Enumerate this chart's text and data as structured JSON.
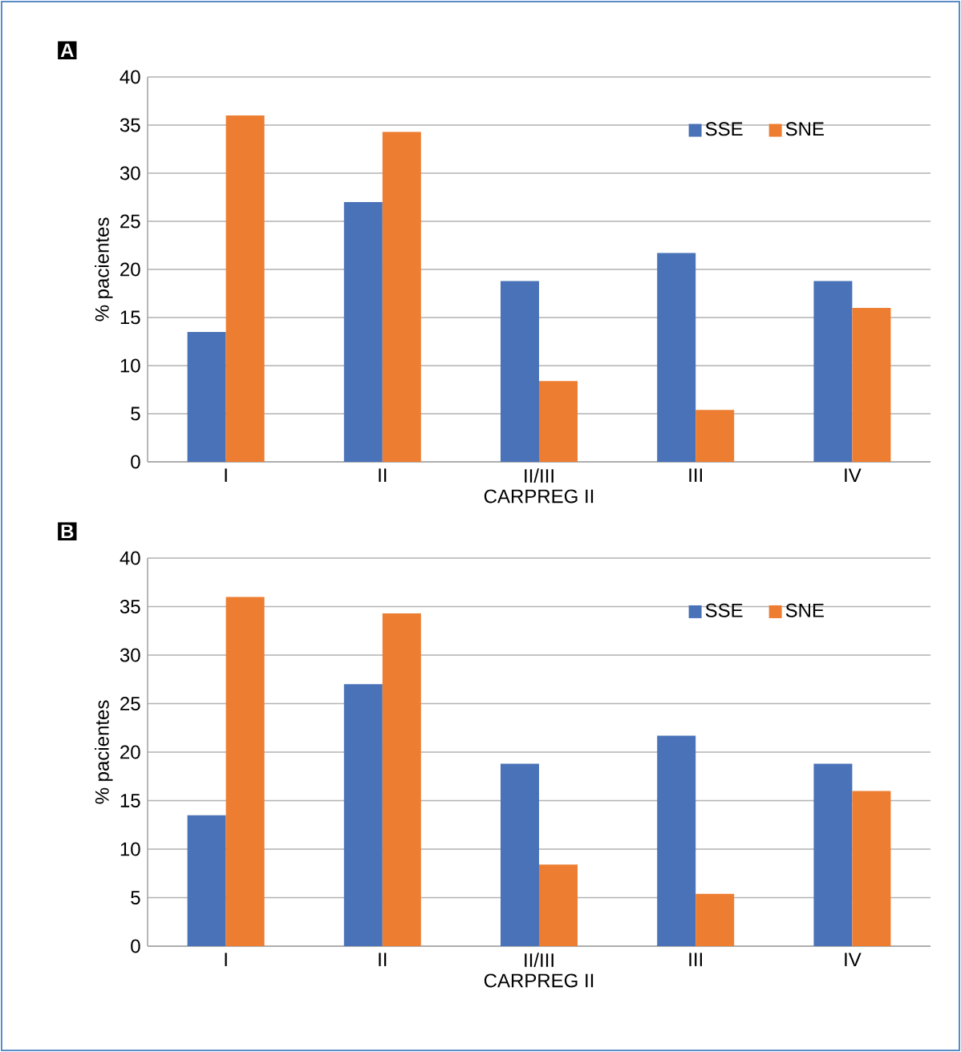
{
  "chart_data": [
    {
      "type": "bar",
      "title": "A",
      "xlabel": "CARPREG II",
      "ylabel": "% pacientes",
      "categories": [
        "I",
        "II",
        "II/III",
        "III",
        "IV"
      ],
      "ylim": [
        0,
        40
      ],
      "yticks": [
        0,
        5,
        10,
        15,
        20,
        25,
        30,
        35,
        40
      ],
      "grid": "y",
      "legend": "top right",
      "series": [
        {
          "name": "SSE",
          "color": "#4a72b8",
          "values": [
            13.5,
            27.0,
            18.8,
            21.7,
            18.8
          ]
        },
        {
          "name": "SNE",
          "color": "#ed7d31",
          "values": [
            36.0,
            34.3,
            8.4,
            5.4,
            16.0
          ]
        }
      ]
    },
    {
      "type": "bar",
      "title": "B",
      "xlabel": "CARPREG II",
      "ylabel": "% pacientes",
      "categories": [
        "I",
        "II",
        "II/III",
        "III",
        "IV"
      ],
      "ylim": [
        0,
        40
      ],
      "yticks": [
        0,
        5,
        10,
        15,
        20,
        25,
        30,
        35,
        40
      ],
      "grid": "y",
      "legend": "top right",
      "series": [
        {
          "name": "SSE",
          "color": "#4a72b8",
          "values": [
            13.5,
            27.0,
            18.8,
            21.7,
            18.8
          ]
        },
        {
          "name": "SNE",
          "color": "#ed7d31",
          "values": [
            36.0,
            34.3,
            8.4,
            5.4,
            16.0
          ]
        }
      ]
    }
  ]
}
